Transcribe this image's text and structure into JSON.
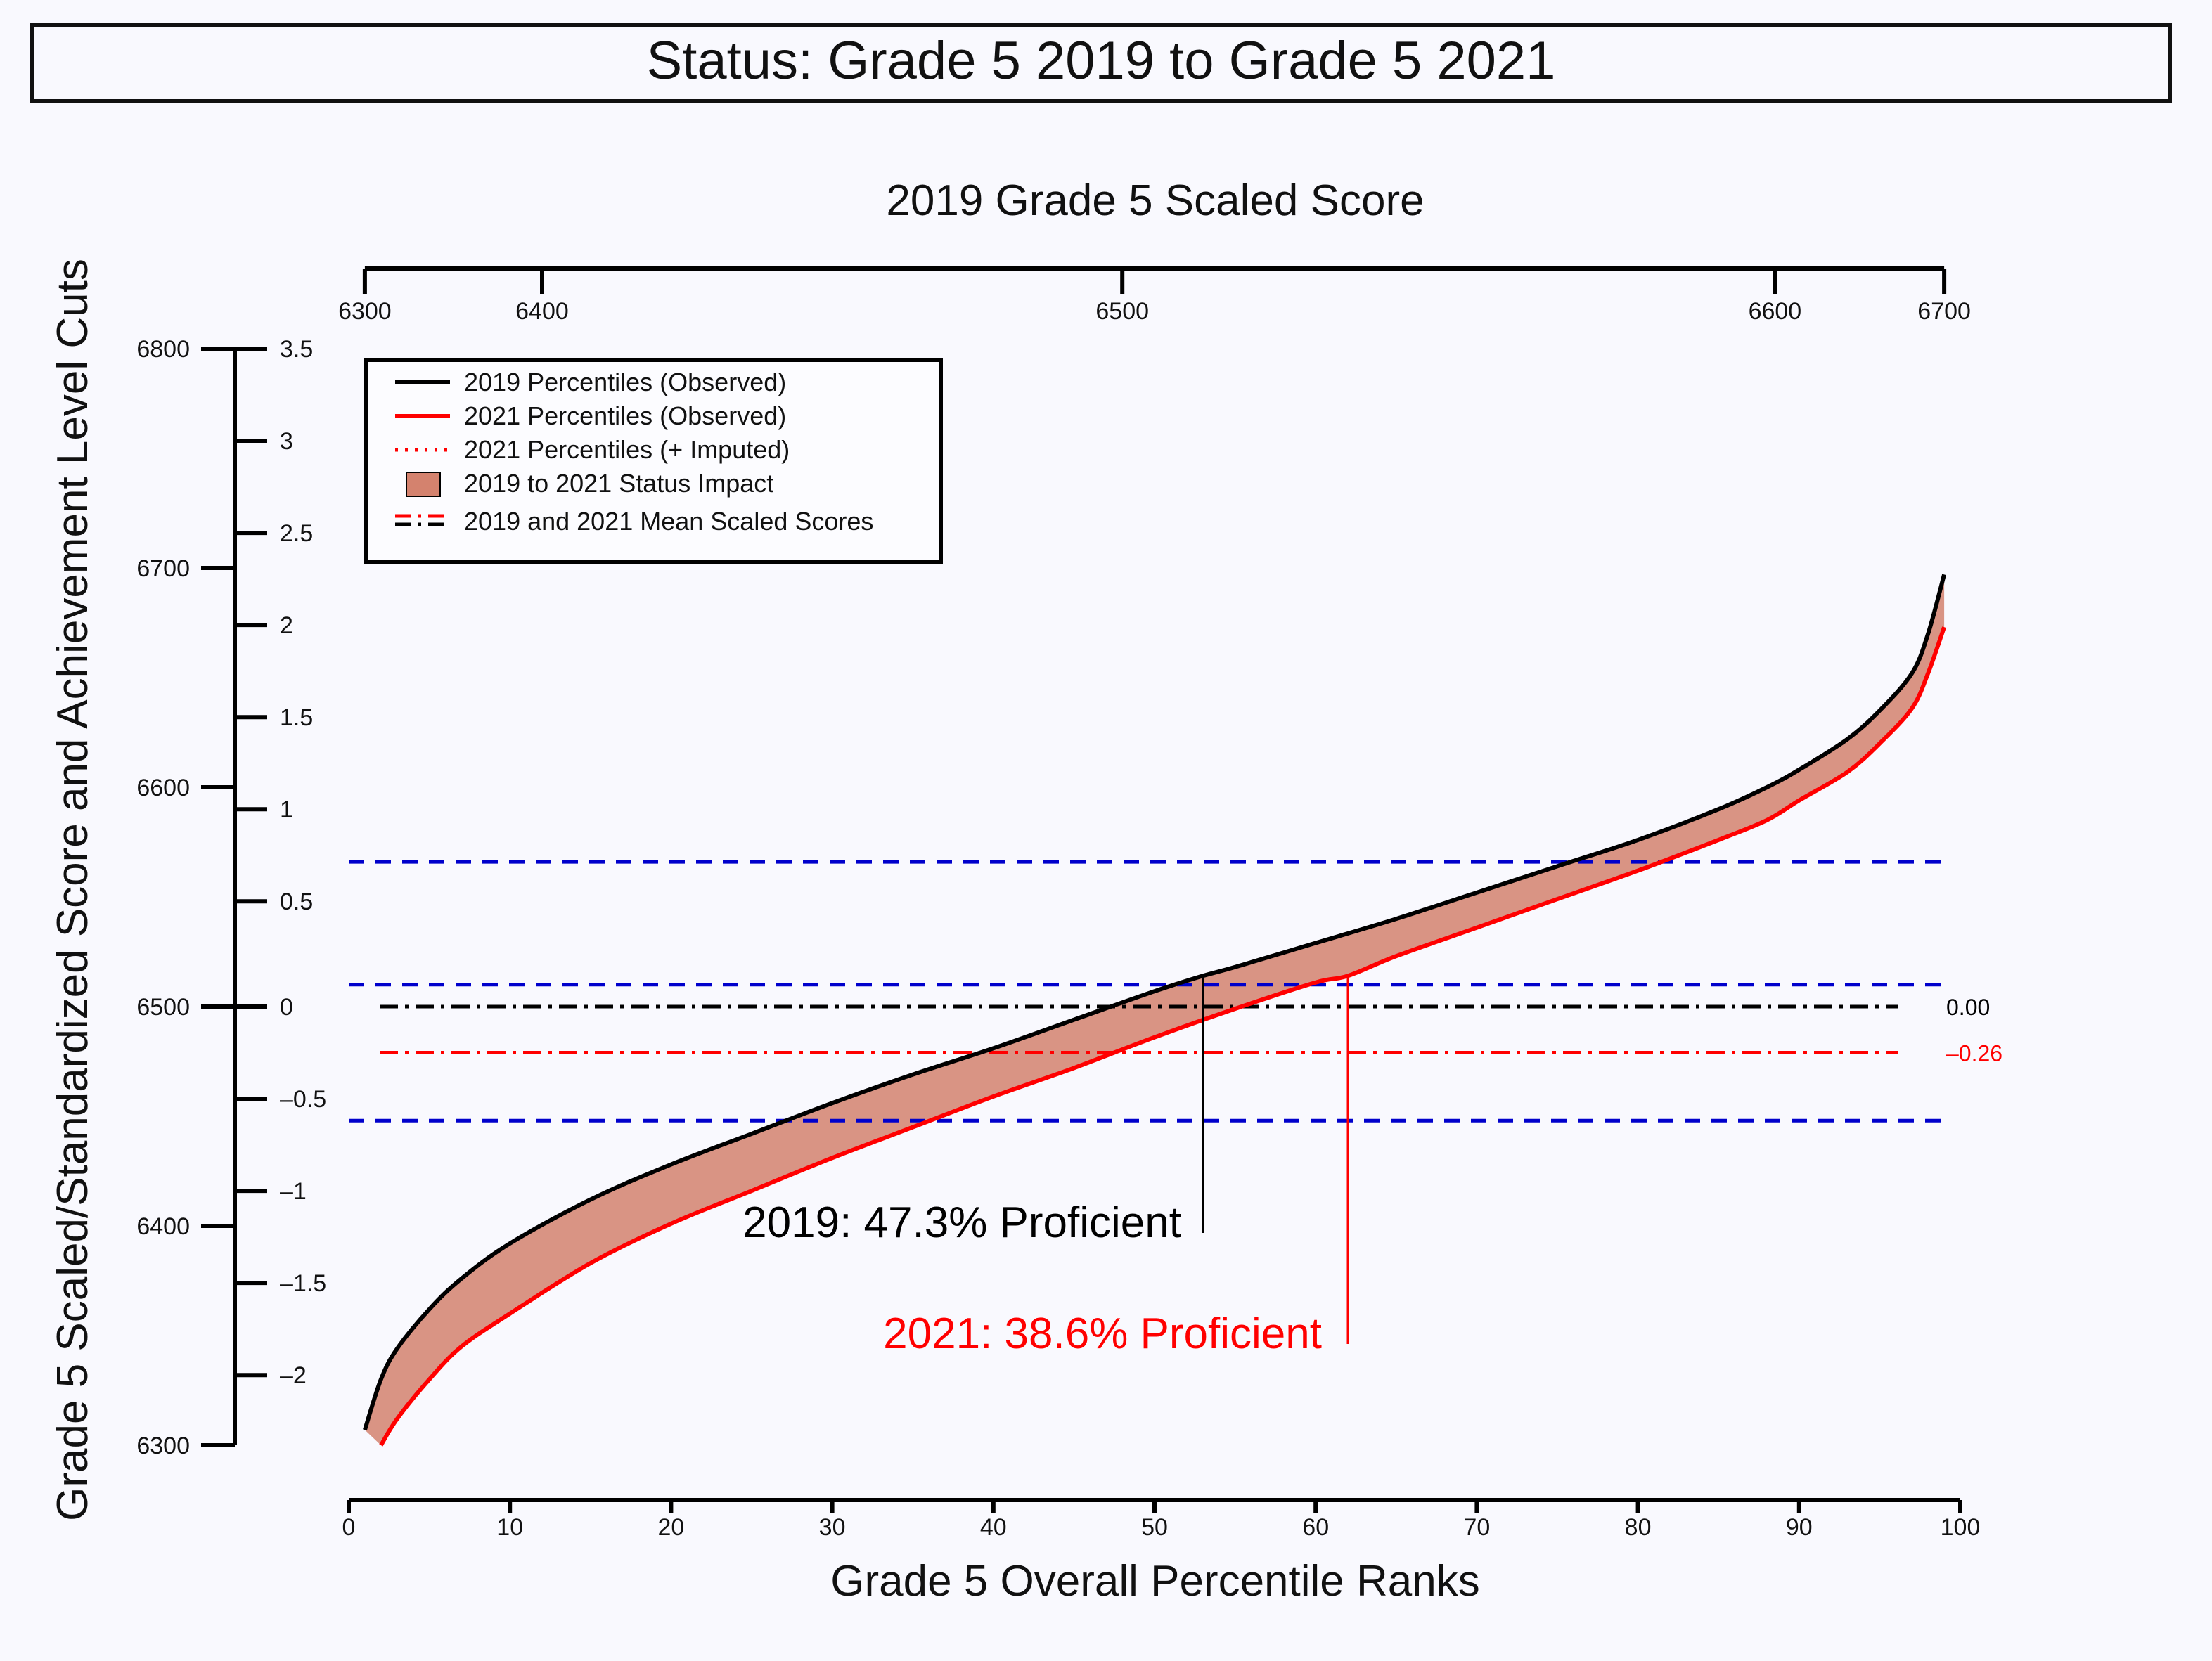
{
  "chart_data": {
    "type": "line",
    "title": "Status: Grade 5 2019 to Grade 5 2021",
    "top_axis": {
      "label": "2019 Grade 5 Scaled Score",
      "ticks": [
        6300,
        6400,
        6500,
        6600,
        6700
      ],
      "tick_positions_percentile": [
        1,
        12,
        48,
        88.5,
        99
      ]
    },
    "xlabel": "Grade 5 Overall Percentile Ranks",
    "xlim": [
      0,
      100
    ],
    "x_ticks": [
      0,
      10,
      20,
      30,
      40,
      50,
      60,
      70,
      80,
      90,
      100
    ],
    "ylabel": "Grade 5 Scaled/Standardized Score and Achievement Level Cuts",
    "ylim": [
      6300,
      6800
    ],
    "y_ticks_scaled": [
      6300,
      6400,
      6500,
      6600,
      6700,
      6800
    ],
    "y_ticks_standardized": {
      "labels": [
        "3.5",
        "3",
        "2.5",
        "2",
        "1.5",
        "1",
        "0.5",
        "0",
        "–0.5",
        "–1",
        "–1.5",
        "–2"
      ],
      "scaled_values": [
        6800,
        6758,
        6716,
        6674,
        6632,
        6590,
        6548,
        6500,
        6458,
        6416,
        6374,
        6332
      ]
    },
    "series": [
      {
        "name": "2019 Percentiles (Observed)",
        "color": "#000000",
        "x": [
          1,
          2,
          3,
          5,
          7,
          10,
          15,
          20,
          25,
          30,
          35,
          40,
          45,
          50,
          53,
          55,
          60,
          65,
          70,
          75,
          80,
          85,
          88,
          90,
          93,
          95,
          97,
          98,
          99
        ],
        "values": [
          6307,
          6330,
          6344,
          6362,
          6376,
          6392,
          6412,
          6428,
          6442,
          6456,
          6469,
          6481,
          6494,
          6507,
          6514,
          6518,
          6529,
          6540,
          6552,
          6564,
          6576,
          6590,
          6600,
          6608,
          6622,
          6635,
          6652,
          6670,
          6697
        ]
      },
      {
        "name": "2021 Percentiles (Observed)",
        "color": "#ff0000",
        "x": [
          2,
          3,
          5,
          7,
          10,
          15,
          20,
          25,
          30,
          35,
          40,
          45,
          50,
          55,
          60,
          62,
          65,
          70,
          75,
          80,
          85,
          88,
          90,
          93,
          95,
          97,
          98,
          99
        ],
        "values": [
          6300,
          6312,
          6330,
          6345,
          6360,
          6383,
          6401,
          6416,
          6431,
          6445,
          6459,
          6472,
          6486,
          6499,
          6511,
          6514,
          6523,
          6536,
          6549,
          6562,
          6576,
          6585,
          6594,
          6607,
          6620,
          6636,
          6652,
          6673
        ]
      }
    ],
    "legend": {
      "position": "top-left",
      "entries": [
        "2019 Percentiles (Observed)",
        "2021 Percentiles (Observed)",
        "2021 Percentiles (+ Imputed)",
        "2019 to 2021 Status Impact",
        "2019 and 2021 Mean Scaled Scores"
      ]
    },
    "impact_color": "#d4826e",
    "cut_scores": [
      6448,
      6510,
      6566
    ],
    "cut_color": "#0000cc",
    "means": [
      {
        "label": "0.00",
        "value": 6500,
        "color": "#000000"
      },
      {
        "label": "–0.26",
        "value": 6479,
        "color": "#ff0000"
      }
    ],
    "proficiency_markers": [
      {
        "label": "2019: 47.3% Proficient",
        "percentile": 53,
        "color": "#000000"
      },
      {
        "label": "2021: 38.6% Proficient",
        "percentile": 62,
        "color": "#ff0000"
      }
    ]
  }
}
